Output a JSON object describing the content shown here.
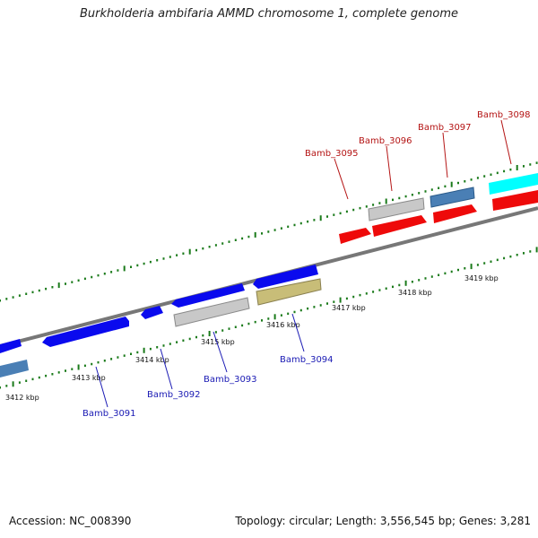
{
  "title": "Burkholderia ambifaria AMMD chromosome 1, complete genome",
  "footer": {
    "accession": "Accession: NC_008390",
    "topology": "Topology: circular; Length: 3,556,545 bp; Genes: 3,281"
  },
  "scale_labels": [
    "3412 kbp",
    "3413 kbp",
    "3414 kbp",
    "3415 kbp",
    "3416 kbp",
    "3417 kbp",
    "3418 kbp",
    "3419 kbp"
  ],
  "colors": {
    "blue": "#0a0aee",
    "steel": "#4a7fb5",
    "grey": "#c8c8c8",
    "khaki": "#c8bd78",
    "red": "#ee0a0a",
    "cyan": "#00ffff",
    "tick": "#1a7a1a",
    "label_blue": "#1a1ab4",
    "label_red": "#b41414"
  },
  "gene_labels": {
    "top": [
      "Bamb_3095",
      "Bamb_3096",
      "Bamb_3097",
      "Bamb_3098"
    ],
    "bottom": [
      "Bamb_3091",
      "Bamb_3092",
      "Bamb_3093",
      "Bamb_3094"
    ]
  }
}
